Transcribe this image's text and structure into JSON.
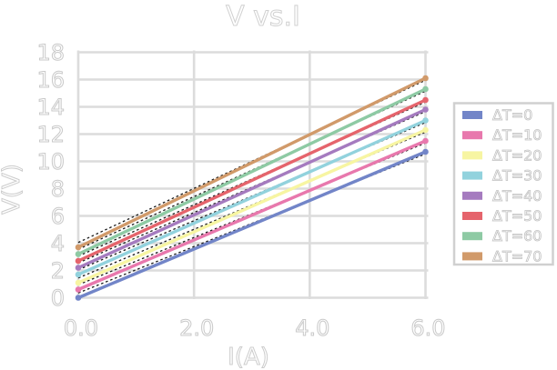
{
  "chart_data": {
    "type": "line",
    "title": "V vs.I",
    "xlabel": "I(A)",
    "ylabel": "V(V)",
    "xlim": [
      0,
      6
    ],
    "ylim": [
      0,
      18
    ],
    "xtick_values": [
      0,
      2,
      4,
      6
    ],
    "xtick_labels": [
      "0.0",
      "2.0",
      "4.0",
      "6.0"
    ],
    "ytick_values": [
      0,
      2,
      4,
      6,
      8,
      10,
      12,
      14,
      16,
      18
    ],
    "ytick_labels": [
      "0",
      "2",
      "4",
      "6",
      "8",
      "10",
      "12",
      "14",
      "16",
      "18"
    ],
    "grid": true,
    "legend_position": "right-outside",
    "marker": "circle",
    "series": [
      {
        "name": "ΔT=0",
        "color": "#7285c8",
        "x": [
          0,
          6
        ],
        "y": [
          0.0,
          10.7
        ]
      },
      {
        "name": "ΔT=10",
        "color": "#e878ad",
        "x": [
          0,
          6
        ],
        "y": [
          0.6,
          11.5
        ]
      },
      {
        "name": "ΔT=20",
        "color": "#f7f5a2",
        "x": [
          0,
          6
        ],
        "y": [
          1.1,
          12.3
        ]
      },
      {
        "name": "ΔT=30",
        "color": "#92d2dd",
        "x": [
          0,
          6
        ],
        "y": [
          1.7,
          13.0
        ]
      },
      {
        "name": "ΔT=40",
        "color": "#a57bbf",
        "x": [
          0,
          6
        ],
        "y": [
          2.2,
          13.8
        ]
      },
      {
        "name": "ΔT=50",
        "color": "#e5646c",
        "x": [
          0,
          6
        ],
        "y": [
          2.7,
          14.5
        ]
      },
      {
        "name": "ΔT=60",
        "color": "#8ecaa4",
        "x": [
          0,
          6
        ],
        "y": [
          3.2,
          15.3
        ]
      },
      {
        "name": "ΔT=70",
        "color": "#d19a6a",
        "x": [
          0,
          6
        ],
        "y": [
          3.7,
          16.1
        ]
      }
    ],
    "fit_lines": {
      "present": true,
      "style": "dashed",
      "color": "#1a1a1a"
    },
    "styles": {
      "grid_color": "#dcdcdc",
      "text_outline_color": "#c6c6c6",
      "legend_border_color": "#d0d0d0",
      "background": "#ffffff"
    }
  }
}
